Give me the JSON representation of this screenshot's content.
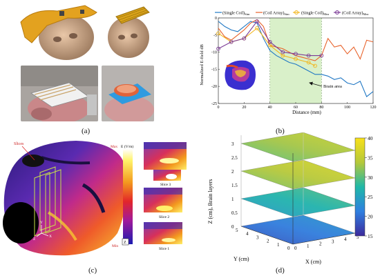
{
  "panels": {
    "a": "(a)",
    "b": "(b)",
    "c": "(c)",
    "d": "(d)"
  },
  "chart_b": {
    "type": "line",
    "legend": [
      "(Single Coil)Sim",
      "(Coil Array)Sim",
      "(Single Coil)Mea",
      "(Coil Array)Mea"
    ],
    "legend_html": [
      "(Single Coil)<tspan baseline-shift='sub' font-size='5'>Sim</tspan>"
    ],
    "ylabel": "Normalized E-field dB",
    "xlabel": "Distance (mm)",
    "annotation": "Brain area",
    "colors": {
      "single_sim": "#1f77c4",
      "array_sim": "#e8622a",
      "single_mea": "#f2b51a",
      "array_mea": "#7b3a96",
      "shade": "#d9f0c9"
    }
  },
  "chart_data": [
    {
      "type": "line",
      "title": "",
      "xlabel": "Distance (mm)",
      "ylabel": "Normalized E-field dB",
      "xlim": [
        0,
        120
      ],
      "ylim": [
        -25,
        0
      ],
      "xticks": [
        0,
        20,
        40,
        60,
        80,
        100,
        120
      ],
      "yticks": [
        0,
        -5,
        -10,
        -15,
        -20,
        -25
      ],
      "shaded_x": [
        40,
        80
      ],
      "series": [
        {
          "name": "(Single Coil)Sim",
          "x": [
            0,
            5,
            10,
            15,
            20,
            25,
            30,
            35,
            40,
            45,
            50,
            55,
            60,
            65,
            70,
            75,
            80,
            85,
            90,
            95,
            100,
            105,
            110,
            115,
            120
          ],
          "y": [
            -1,
            -2.5,
            -3.5,
            -4,
            -2.5,
            -1,
            -1.5,
            -6,
            -9.5,
            -11,
            -12,
            -13,
            -13.5,
            -14.5,
            -15.5,
            -16.5,
            -16.5,
            -17,
            -18,
            -17.5,
            -19,
            -19.5,
            -18.5,
            -23,
            -21.5
          ]
        },
        {
          "name": "(Coil Array)Sim",
          "x": [
            0,
            5,
            10,
            15,
            20,
            25,
            30,
            35,
            40,
            45,
            50,
            55,
            60,
            65,
            70,
            75,
            80,
            85,
            90,
            95,
            100,
            105,
            110,
            115,
            120
          ],
          "y": [
            -3,
            -5.5,
            -6.5,
            -5,
            -3.5,
            -1.5,
            -0.5,
            -2.5,
            -8,
            -8.5,
            -9,
            -10,
            -11,
            -11.5,
            -12,
            -12.5,
            -11,
            -6,
            -8.5,
            -8,
            -10.5,
            -8.5,
            -12,
            -6.5,
            -7
          ]
        },
        {
          "name": "(Single Coil)Mea",
          "x": [
            0,
            10,
            20,
            30,
            40,
            50,
            60,
            70,
            75
          ],
          "y": [
            -4.5,
            -7,
            -6,
            -3,
            -8,
            -11,
            -12,
            -13,
            -14
          ]
        },
        {
          "name": "(Coil Array)Mea",
          "x": [
            0,
            10,
            20,
            30,
            40,
            50,
            60,
            70,
            80
          ],
          "y": [
            -9,
            -7,
            -6,
            -1,
            -7,
            -10,
            -10.5,
            -11,
            -11
          ]
        }
      ]
    },
    {
      "type": "heatmap",
      "title": "",
      "xlabel": "X (cm)",
      "ylabel": "Y (cm)",
      "zlabel": "Z (cm), Brain layers",
      "xticks": [
        0,
        1,
        2,
        3,
        4,
        5
      ],
      "yticks": [
        0,
        1,
        2,
        3,
        4,
        5
      ],
      "zticks": [
        0,
        0.5,
        1,
        1.5,
        2,
        2.5,
        3
      ],
      "colorbar_ticks": [
        40,
        35,
        30,
        25,
        20,
        15
      ],
      "colorbar_range": [
        15,
        40
      ],
      "layers": [
        {
          "z": 0,
          "mean_value": 21
        },
        {
          "z": 1,
          "mean_value": 27
        },
        {
          "z": 2,
          "mean_value": 34
        },
        {
          "z": 3,
          "mean_value": 33
        }
      ]
    }
  ],
  "panel_c": {
    "slices_label": "Slices",
    "colorbar_title": "E (V/m)",
    "max_label": "Max",
    "min_label": "Min",
    "slice_labels": [
      "Slice 3",
      "Slice 2",
      "Slice 1"
    ],
    "axis_labels": [
      "Y",
      "X",
      "Z"
    ]
  }
}
